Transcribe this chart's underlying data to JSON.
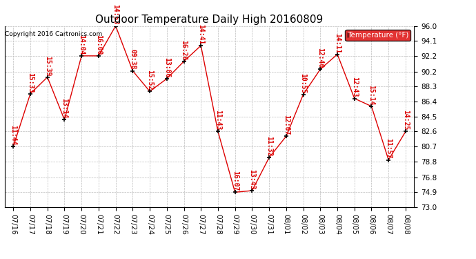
{
  "title": "Outdoor Temperature Daily High 20160809",
  "copyright": "Copyright 2016 Cartronics.com",
  "legend_label": "Temperature (°F)",
  "x_labels": [
    "07/16",
    "07/17",
    "07/18",
    "07/19",
    "07/20",
    "07/21",
    "07/22",
    "07/23",
    "07/24",
    "07/25",
    "07/26",
    "07/27",
    "07/28",
    "07/29",
    "07/30",
    "07/31",
    "08/01",
    "08/02",
    "08/03",
    "08/04",
    "08/05",
    "08/06",
    "08/07",
    "08/08"
  ],
  "y_values": [
    80.7,
    87.4,
    89.5,
    84.1,
    92.2,
    92.2,
    96.0,
    90.3,
    87.7,
    89.3,
    91.5,
    93.5,
    82.6,
    74.9,
    75.1,
    79.3,
    82.0,
    87.3,
    90.5,
    92.4,
    86.8,
    85.8,
    79.0,
    82.6
  ],
  "time_labels": [
    "11:44",
    "15:33",
    "15:39",
    "13:14",
    "14:04",
    "16:00",
    "14:53",
    "09:38",
    "15:52",
    "13:06",
    "16:26",
    "14:41",
    "11:43",
    "16:07",
    "13:43",
    "11:32",
    "12:07",
    "10:55",
    "12:40",
    "14:11",
    "12:43",
    "15:14",
    "11:57",
    "14:25"
  ],
  "ylim_min": 73.0,
  "ylim_max": 96.0,
  "yticks": [
    73.0,
    74.9,
    76.8,
    78.8,
    80.7,
    82.6,
    84.5,
    86.4,
    88.3,
    90.2,
    92.2,
    94.1,
    96.0
  ],
  "line_color": "#dd0000",
  "marker_color": "#000000",
  "bg_color": "#ffffff",
  "grid_color": "#bbbbbb",
  "title_fontsize": 11,
  "label_fontsize": 7,
  "tick_fontsize": 7.5
}
